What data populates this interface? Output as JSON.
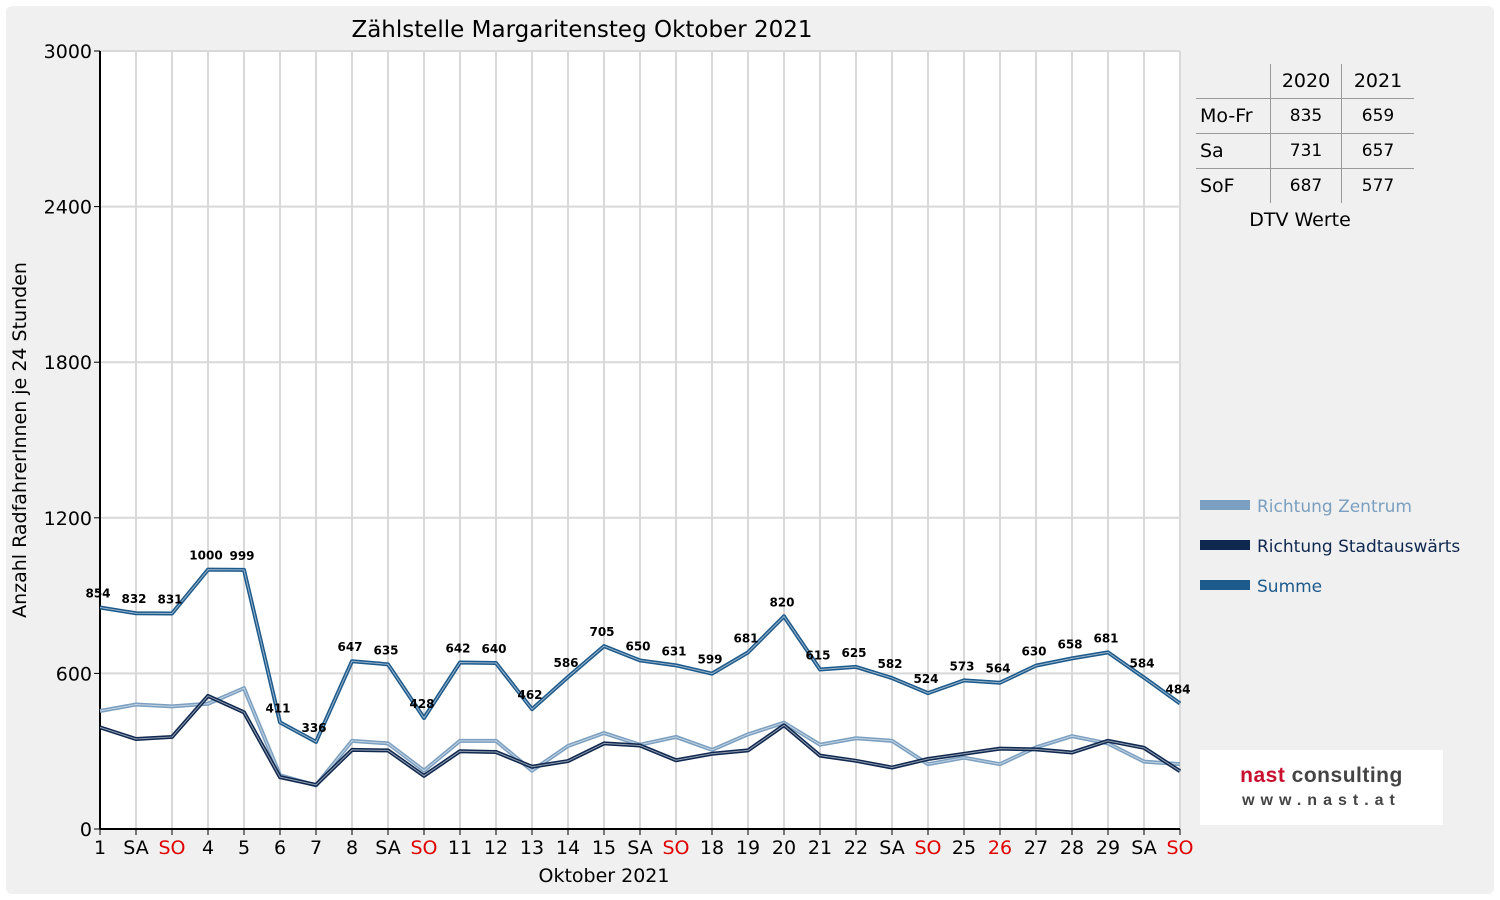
{
  "chart_data": {
    "type": "line",
    "title": "Zählstelle Margaritensteg Oktober 2021",
    "xlabel": "Oktober 2021",
    "ylabel": "Anzahl RadfahrerInnen je 24 Stunden",
    "ylim": [
      0,
      3000
    ],
    "yticks": [
      0,
      600,
      1200,
      1800,
      2400,
      3000
    ],
    "grid": true,
    "legend_position": "right",
    "categories": [
      "1",
      "SA",
      "SO",
      "4",
      "5",
      "6",
      "7",
      "8",
      "SA",
      "SO",
      "11",
      "12",
      "13",
      "14",
      "15",
      "SA",
      "SO",
      "18",
      "19",
      "20",
      "21",
      "22",
      "SA",
      "SO",
      "25",
      "26",
      "27",
      "28",
      "29",
      "SA",
      "SO"
    ],
    "highlight_categories": [
      2,
      9,
      16,
      23,
      25,
      30
    ],
    "highlight_color": "#e00000",
    "series": [
      {
        "name": "Richtung Zentrum",
        "color": "#7b9fc0",
        "values": [
          455,
          480,
          473,
          483,
          543,
          207,
          168,
          340,
          330,
          225,
          340,
          340,
          225,
          320,
          370,
          325,
          355,
          305,
          365,
          410,
          325,
          350,
          340,
          250,
          275,
          250,
          315,
          358,
          330,
          260,
          250
        ]
      },
      {
        "name": "Richtung Stadtauswärts",
        "color": "#0f2850",
        "values": [
          392,
          347,
          355,
          513,
          450,
          200,
          170,
          305,
          303,
          205,
          300,
          297,
          240,
          262,
          330,
          322,
          265,
          290,
          303,
          400,
          283,
          263,
          237,
          270,
          290,
          310,
          307,
          295,
          340,
          313,
          223
        ]
      },
      {
        "name": "Summe",
        "color": "#1d5a8c",
        "values": [
          854,
          832,
          831,
          1000,
          999,
          411,
          336,
          647,
          635,
          428,
          642,
          640,
          462,
          586,
          705,
          650,
          631,
          599,
          681,
          820,
          615,
          625,
          582,
          524,
          573,
          564,
          630,
          658,
          681,
          584,
          484
        ]
      }
    ],
    "data_labels": [
      854,
      832,
      831,
      1000,
      999,
      411,
      336,
      647,
      635,
      428,
      642,
      640,
      462,
      586,
      705,
      650,
      631,
      599,
      681,
      820,
      615,
      625,
      582,
      524,
      573,
      564,
      630,
      658,
      681,
      584,
      484
    ]
  },
  "dtv": {
    "columns": [
      "",
      "2020",
      "2021"
    ],
    "rows": [
      {
        "label": "Mo-Fr",
        "v2020": "835",
        "v2021": "659"
      },
      {
        "label": "Sa",
        "v2020": "731",
        "v2021": "657"
      },
      {
        "label": "SoF",
        "v2020": "687",
        "v2021": "577"
      }
    ],
    "caption": "DTV Werte"
  },
  "logo": {
    "name_part1": "nast",
    "name_part2": " consulting",
    "url": "www.nast.at"
  }
}
